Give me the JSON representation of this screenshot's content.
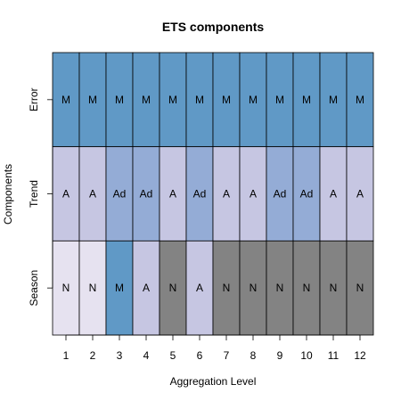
{
  "chart_data": {
    "type": "heatmap",
    "title": "ETS components",
    "xlabel": "Aggregation Level",
    "ylabel": "Components",
    "x": [
      "1",
      "2",
      "3",
      "4",
      "5",
      "6",
      "7",
      "8",
      "9",
      "10",
      "11",
      "12"
    ],
    "rows": [
      {
        "name": "Error",
        "values": [
          "M",
          "M",
          "M",
          "M",
          "M",
          "M",
          "M",
          "M",
          "M",
          "M",
          "M",
          "M"
        ]
      },
      {
        "name": "Trend",
        "values": [
          "A",
          "A",
          "Ad",
          "Ad",
          "A",
          "Ad",
          "A",
          "A",
          "Ad",
          "Ad",
          "A",
          "A"
        ]
      },
      {
        "name": "Season",
        "values": [
          "N",
          "N",
          "M",
          "A",
          "N",
          "A",
          "N",
          "N",
          "N",
          "N",
          "N",
          "N"
        ]
      }
    ],
    "colors": {
      "Error": {
        "M": "#6099c6"
      },
      "Trend": {
        "A": "#c6c6e2",
        "Ad": "#94acd6"
      },
      "Season": {
        "N_light": "#e6e2f0",
        "N_dark": "#838383",
        "A": "#c6c6e2",
        "M": "#6099c6"
      }
    },
    "season_dark_levels": [
      "5",
      "7",
      "8",
      "9",
      "10",
      "11",
      "12"
    ]
  }
}
